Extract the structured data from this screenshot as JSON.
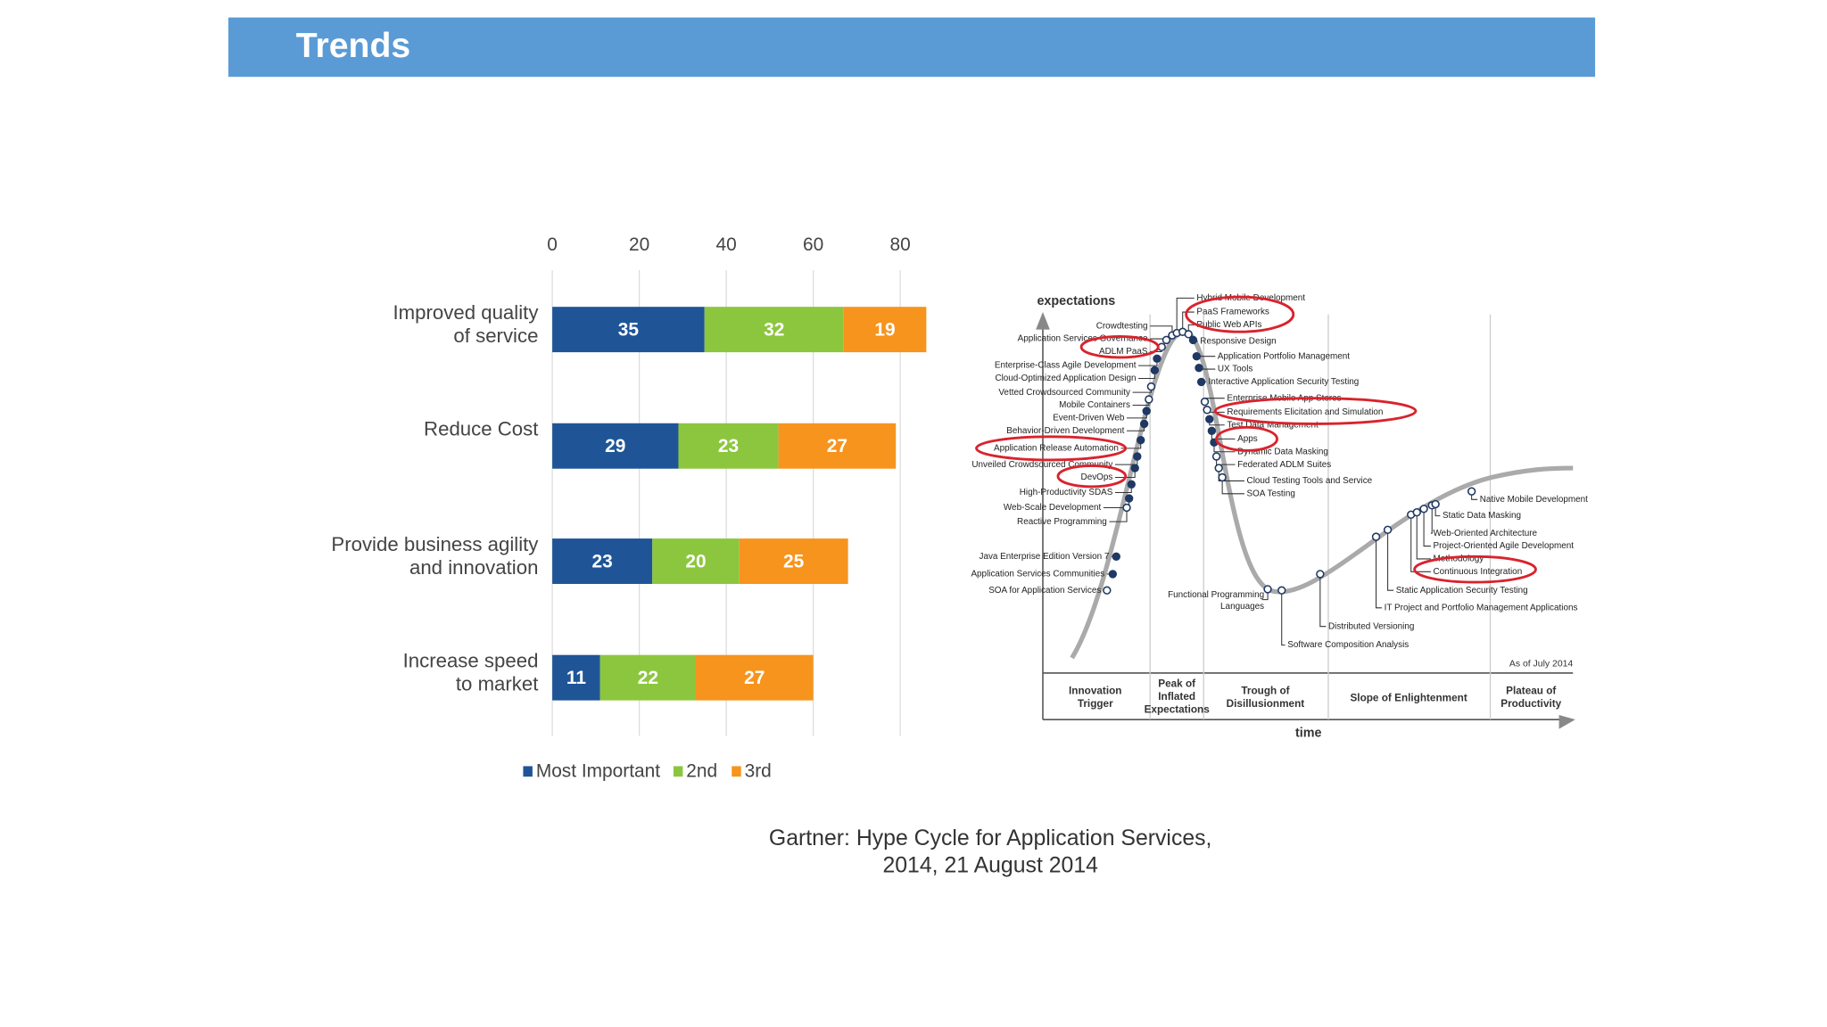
{
  "header": {
    "title": "Trends"
  },
  "chart_data": {
    "type": "bar",
    "orientation": "horizontal",
    "stacked": true,
    "categories": [
      "Improved quality\nof service",
      "Reduce Cost",
      "Provide business agility\nand innovation",
      "Increase speed\nto market"
    ],
    "series": [
      {
        "name": "Most Important",
        "color": "#1f5597",
        "values": [
          35,
          29,
          23,
          11
        ]
      },
      {
        "name": "2nd",
        "color": "#8cc63e",
        "values": [
          32,
          23,
          20,
          22
        ]
      },
      {
        "name": "3rd",
        "color": "#f7941d",
        "values": [
          19,
          27,
          25,
          27
        ]
      }
    ],
    "xlim": [
      0,
      86
    ],
    "xticks": [
      0,
      20,
      40,
      60,
      80
    ],
    "grid": true,
    "legend": "bottom"
  },
  "caption": "Gartner: Hype Cycle for Application Services,\n2014, 21 August 2014",
  "hype_cycle": {
    "y_axis_label": "expectations",
    "x_axis_label": "time",
    "as_of": "As of July 2014",
    "phases": [
      "Innovation\nTrigger",
      "Peak of\nInflated\nExpectations",
      "Trough of\nDisillusionment",
      "Slope of Enlightenment",
      "Plateau of\nProductivity"
    ],
    "items": [
      "Crowdtesting",
      "Application Services Governance",
      "ADLM PaaS",
      "Enterprise-Class Agile Development",
      "Cloud-Optimized Application Design",
      "Vetted Crowdsourced Community",
      "Mobile Containers",
      "Event-Driven Web",
      "Behavior-Driven Development",
      "Application Release Automation",
      "Unveiled Crowdsourced Community",
      "DevOps",
      "High-Productivity SDAS",
      "Web-Scale Development",
      "Reactive Programming",
      "Java Enterprise Edition Version 7",
      "Application Services Communities",
      "SOA for Application Services",
      "Hybrid Mobile Development",
      "PaaS Frameworks",
      "Public Web APIs",
      "Responsive Design",
      "Application Portfolio Management",
      "UX Tools",
      "Interactive Application Security Testing",
      "Enterprise Mobile App Stores",
      "Requirements Elicitation and Simulation",
      "Test Data Management",
      "Apps",
      "Dynamic Data Masking",
      "Federated ADLM Suites",
      "Cloud Testing Tools and Service",
      "SOA Testing",
      "Distributed Versioning",
      "Software Composition Analysis",
      "IT Project and Portfolio Management Applications",
      "Static Application Security Testing",
      "Continuous Integration",
      "Methodology",
      "Project-Oriented Agile Development",
      "Web-Oriented Architecture",
      "Static Data Masking",
      "Native Mobile Development"
    ],
    "functional_item": "Functional Programming\nLanguages"
  }
}
